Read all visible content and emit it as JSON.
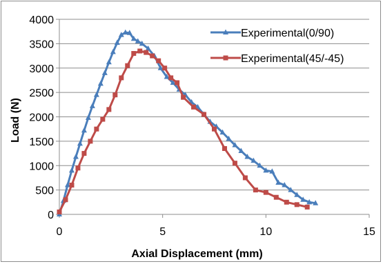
{
  "chart_data": {
    "type": "line",
    "xlabel": "Axial Displacement (mm)",
    "ylabel": "Load (N)",
    "xlim": [
      0,
      15
    ],
    "ylim": [
      0,
      4000
    ],
    "xticks": [
      0,
      5,
      10,
      15
    ],
    "yticks": [
      0,
      500,
      1000,
      1500,
      2000,
      2500,
      3000,
      3500,
      4000
    ],
    "grid": "horizontal",
    "legend_position": "top-right",
    "series": [
      {
        "name": "Experimental(0/90)",
        "color": "#4a7ebb",
        "marker": "triangle",
        "x": [
          0,
          0.2,
          0.4,
          0.6,
          0.8,
          1.0,
          1.2,
          1.4,
          1.6,
          1.8,
          2.0,
          2.2,
          2.4,
          2.6,
          2.8,
          3.0,
          3.2,
          3.4,
          3.6,
          3.8,
          4.0,
          4.3,
          4.6,
          4.9,
          5.2,
          5.5,
          5.8,
          6.1,
          6.4,
          6.7,
          7.0,
          7.3,
          7.6,
          7.9,
          8.2,
          8.5,
          8.8,
          9.1,
          9.4,
          9.7,
          10.0,
          10.3,
          10.6,
          10.9,
          11.2,
          11.5,
          11.8,
          12.1,
          12.4
        ],
        "values": [
          0,
          280,
          600,
          900,
          1180,
          1450,
          1720,
          1980,
          2220,
          2450,
          2680,
          2900,
          3120,
          3330,
          3520,
          3680,
          3730,
          3720,
          3600,
          3550,
          3500,
          3400,
          3250,
          3000,
          2820,
          2700,
          2560,
          2450,
          2300,
          2200,
          2050,
          1900,
          1800,
          1680,
          1550,
          1420,
          1300,
          1180,
          1100,
          1000,
          900,
          880,
          650,
          600,
          500,
          400,
          300,
          250,
          230
        ]
      },
      {
        "name": "Experimental(45/-45)",
        "color": "#be4b48",
        "marker": "square",
        "x": [
          0,
          0.3,
          0.6,
          0.9,
          1.2,
          1.5,
          1.8,
          2.1,
          2.4,
          2.7,
          3.0,
          3.3,
          3.6,
          3.9,
          4.2,
          4.5,
          4.8,
          5.1,
          5.4,
          5.7,
          6.0,
          6.5,
          7.0,
          7.5,
          8.0,
          8.5,
          9.0,
          9.5,
          10.0,
          10.5,
          11.0,
          11.5,
          12.0
        ],
        "values": [
          50,
          300,
          600,
          950,
          1250,
          1500,
          1750,
          1950,
          2150,
          2450,
          2800,
          3050,
          3300,
          3350,
          3320,
          3250,
          3150,
          3000,
          2800,
          2700,
          2400,
          2200,
          2050,
          1750,
          1350,
          1050,
          750,
          500,
          450,
          350,
          250,
          200,
          150
        ]
      }
    ]
  }
}
